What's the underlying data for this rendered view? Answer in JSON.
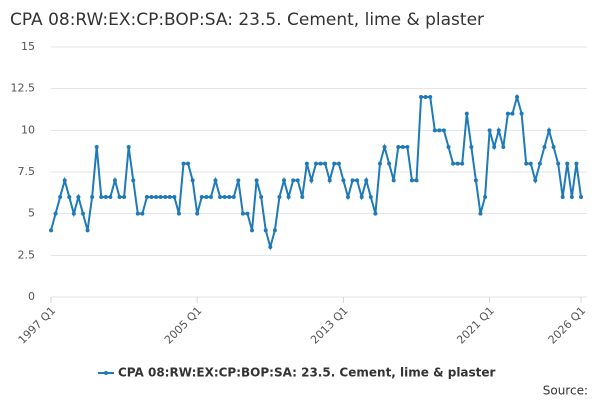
{
  "chart_data": {
    "type": "line",
    "title": "CPA 08:RW:EX:CP:BOP:SA: 23.5. Cement, lime & plaster",
    "source": "Source:",
    "categories": [
      "1997 Q1",
      null,
      null,
      null,
      null,
      null,
      null,
      null,
      null,
      null,
      null,
      null,
      null,
      null,
      null,
      null,
      null,
      null,
      null,
      null,
      null,
      null,
      null,
      null,
      null,
      null,
      null,
      null,
      null,
      null,
      null,
      null,
      "2005 Q1",
      null,
      null,
      null,
      null,
      null,
      null,
      null,
      null,
      null,
      null,
      null,
      null,
      null,
      null,
      null,
      null,
      null,
      null,
      null,
      null,
      null,
      null,
      null,
      null,
      null,
      null,
      null,
      null,
      null,
      null,
      null,
      "2013 Q1",
      null,
      null,
      null,
      null,
      null,
      null,
      null,
      null,
      null,
      null,
      null,
      null,
      null,
      null,
      null,
      null,
      null,
      null,
      null,
      null,
      null,
      null,
      null,
      null,
      null,
      null,
      null,
      null,
      null,
      null,
      null,
      "2021 Q1",
      null,
      null,
      null,
      null,
      null,
      null,
      null,
      null,
      null,
      null,
      null,
      null,
      null,
      null,
      null,
      null,
      null,
      null,
      null,
      "2026 Q1"
    ],
    "series": [
      {
        "name": "CPA 08:RW:EX:CP:BOP:SA: 23.5. Cement, lime & plaster",
        "color": "#1f7ab8",
        "values": [
          4,
          5,
          6,
          7,
          6,
          5,
          6,
          5,
          4,
          6,
          9,
          6,
          6,
          6,
          7,
          6,
          6,
          9,
          7,
          5,
          5,
          6,
          6,
          6,
          6,
          6,
          6,
          6,
          5,
          8,
          8,
          7,
          5,
          6,
          6,
          6,
          7,
          6,
          6,
          6,
          6,
          7,
          5,
          5,
          4,
          7,
          6,
          4,
          3,
          4,
          6,
          7,
          6,
          7,
          7,
          6,
          8,
          7,
          8,
          8,
          8,
          7,
          8,
          8,
          7,
          6,
          7,
          7,
          6,
          7,
          6,
          5,
          8,
          9,
          8,
          7,
          9,
          9,
          9,
          7,
          7,
          12,
          12,
          12,
          10,
          10,
          10,
          9,
          8,
          8,
          8,
          11,
          9,
          7,
          5,
          6,
          10,
          9,
          10,
          9,
          11,
          11,
          12,
          11,
          8,
          8,
          7,
          8,
          9,
          10,
          9,
          8,
          6,
          8,
          6,
          8,
          6
        ]
      }
    ],
    "ylim": [
      0,
      15
    ],
    "yticks": [
      0,
      2.5,
      5,
      7.5,
      10,
      12.5,
      15
    ],
    "grid": true
  }
}
